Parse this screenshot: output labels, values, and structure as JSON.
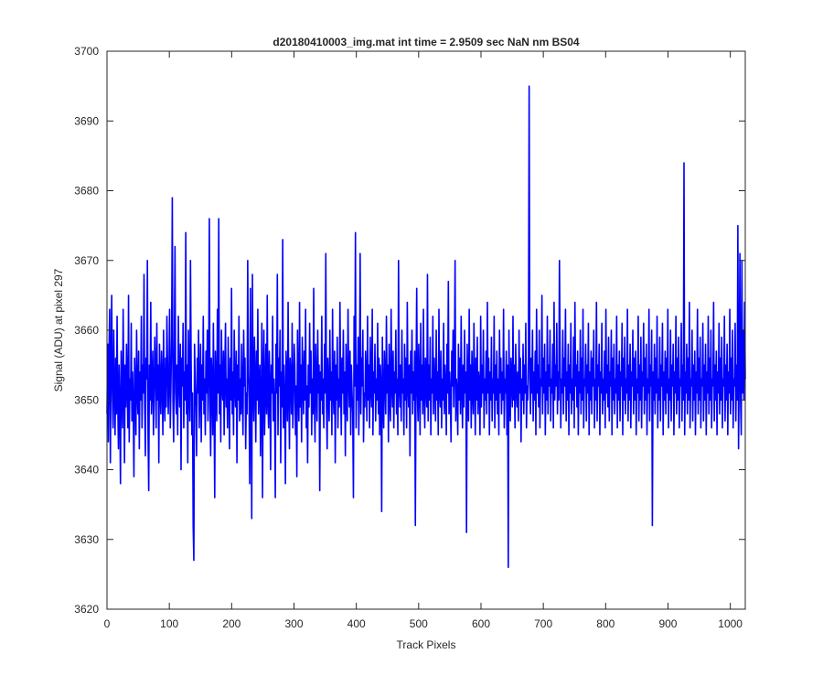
{
  "chart_data": {
    "type": "line",
    "title": "d20180410003_img.mat int time = 2.9509 sec  NaN nm BS04",
    "xlabel": "Track Pixels",
    "ylabel": "Signal (ADU) at pixel 297",
    "xlim": [
      0,
      1024
    ],
    "ylim": [
      3620,
      3700
    ],
    "xticks": [
      0,
      100,
      200,
      300,
      400,
      500,
      600,
      700,
      800,
      900,
      1000
    ],
    "yticks": [
      3620,
      3630,
      3640,
      3650,
      3660,
      3670,
      3680,
      3690,
      3700
    ],
    "grid": false,
    "legend": "none",
    "series_color": "#0000ff",
    "series": [
      {
        "values": [
          3648,
          3658,
          3644,
          3657,
          3663,
          3641,
          3655,
          3665,
          3651,
          3646,
          3660,
          3652,
          3645,
          3656,
          3648,
          3662,
          3650,
          3643,
          3655,
          3649,
          3638,
          3657,
          3651,
          3646,
          3663,
          3652,
          3641,
          3655,
          3649,
          3658,
          3652,
          3646,
          3665,
          3644,
          3653,
          3650,
          3661,
          3647,
          3654,
          3649,
          3639,
          3656,
          3652,
          3645,
          3660,
          3651,
          3648,
          3657,
          3643,
          3654,
          3650,
          3662,
          3646,
          3655,
          3651,
          3668,
          3649,
          3642,
          3656,
          3653,
          3670,
          3645,
          3637,
          3655,
          3650,
          3664,
          3648,
          3652,
          3657,
          3645,
          3651,
          3659,
          3654,
          3646,
          3661,
          3650,
          3655,
          3641,
          3658,
          3652,
          3648,
          3657,
          3653,
          3645,
          3660,
          3651,
          3647,
          3656,
          3649,
          3662,
          3655,
          3648,
          3653,
          3663,
          3646,
          3652,
          3659,
          3679,
          3650,
          3644,
          3657,
          3672,
          3651,
          3648,
          3655,
          3645,
          3662,
          3653,
          3649,
          3658,
          3640,
          3656,
          3652,
          3661,
          3646,
          3654,
          3650,
          3674,
          3648,
          3655,
          3641,
          3660,
          3652,
          3647,
          3670,
          3655,
          3645,
          3651,
          3632,
          3627,
          3658,
          3653,
          3649,
          3642,
          3656,
          3651,
          3660,
          3646,
          3652,
          3658,
          3644,
          3655,
          3650,
          3662,
          3648,
          3653,
          3645,
          3657,
          3651,
          3660,
          3647,
          3654,
          3676,
          3649,
          3642,
          3656,
          3653,
          3645,
          3661,
          3650,
          3636,
          3657,
          3652,
          3647,
          3663,
          3651,
          3676,
          3648,
          3655,
          3644,
          3660,
          3652,
          3650,
          3657,
          3645,
          3654,
          3661,
          3649,
          3653,
          3646,
          3659,
          3652,
          3643,
          3656,
          3650,
          3666,
          3648,
          3654,
          3645,
          3660,
          3652,
          3649,
          3657,
          3641,
          3655,
          3650,
          3662,
          3647,
          3653,
          3648,
          3658,
          3651,
          3645,
          3660,
          3652,
          3656,
          3643,
          3651,
          3648,
          3670,
          3654,
          3650,
          3638,
          3666,
          3650,
          3633,
          3668,
          3652,
          3647,
          3659,
          3653,
          3644,
          3657,
          3650,
          3663,
          3648,
          3652,
          3655,
          3642,
          3649,
          3661,
          3636,
          3653,
          3660,
          3645,
          3651,
          3658,
          3648,
          3665,
          3650,
          3646,
          3657,
          3652,
          3640,
          3655,
          3651,
          3662,
          3647,
          3653,
          3649,
          3636,
          3658,
          3651,
          3668,
          3645,
          3656,
          3652,
          3660,
          3641,
          3654,
          3649,
          3673,
          3646,
          3655,
          3650,
          3638,
          3657,
          3652,
          3647,
          3664,
          3651,
          3643,
          3656,
          3653,
          3648,
          3661,
          3646,
          3650,
          3658,
          3655,
          3645,
          3652,
          3639,
          3660,
          3651,
          3647,
          3664,
          3649,
          3655,
          3644,
          3659,
          3653,
          3648,
          3657,
          3650,
          3663,
          3646,
          3652,
          3641,
          3655,
          3649,
          3661,
          3651,
          3657,
          3645,
          3653,
          3648,
          3666,
          3650,
          3644,
          3658,
          3652,
          3647,
          3660,
          3651,
          3655,
          3637,
          3654,
          3650,
          3662,
          3648,
          3653,
          3646,
          3658,
          3651,
          3671,
          3649,
          3643,
          3656,
          3652,
          3647,
          3660,
          3650,
          3654,
          3645,
          3663,
          3651,
          3648,
          3657,
          3641,
          3655,
          3650,
          3659,
          3646,
          3653,
          3649,
          3664,
          3652,
          3645,
          3656,
          3651,
          3660,
          3648,
          3654,
          3642,
          3658,
          3650,
          3647,
          3663,
          3653,
          3649,
          3657,
          3645,
          3655,
          3651,
          3648,
          3636,
          3662,
          3652,
          3674,
          3646,
          3655,
          3650,
          3659,
          3645,
          3653,
          3671,
          3648,
          3656,
          3652,
          3660,
          3644,
          3651,
          3649,
          3657,
          3653,
          3647,
          3662,
          3650,
          3655,
          3646,
          3659,
          3652,
          3649,
          3663,
          3645,
          3654,
          3651,
          3658,
          3647,
          3653,
          3650,
          3661,
          3648,
          3656,
          3645,
          3655,
          3652,
          3634,
          3659,
          3650,
          3646,
          3657,
          3653,
          3648,
          3662,
          3651,
          3655,
          3644,
          3658,
          3650,
          3647,
          3663,
          3652,
          3649,
          3657,
          3646,
          3654,
          3651,
          3660,
          3648,
          3653,
          3645,
          3670,
          3652,
          3649,
          3655,
          3647,
          3660,
          3651,
          3653,
          3645,
          3658,
          3650,
          3656,
          3646,
          3664,
          3652,
          3649,
          3655,
          3642,
          3657,
          3651,
          3660,
          3648,
          3654,
          3650,
          3657,
          3632,
          3653,
          3666,
          3651,
          3647,
          3658,
          3652,
          3645,
          3661,
          3650,
          3655,
          3648,
          3663,
          3651,
          3646,
          3656,
          3652,
          3649,
          3668,
          3647,
          3655,
          3650,
          3659,
          3645,
          3653,
          3651,
          3662,
          3648,
          3656,
          3652,
          3647,
          3660,
          3650,
          3654,
          3645,
          3663,
          3651,
          3649,
          3657,
          3646,
          3653,
          3650,
          3661,
          3648,
          3655,
          3652,
          3645,
          3658,
          3651,
          3667,
          3648,
          3654,
          3650,
          3644,
          3657,
          3652,
          3660,
          3649,
          3655,
          3670,
          3647,
          3653,
          3651,
          3645,
          3658,
          3650,
          3656,
          3648,
          3662,
          3652,
          3646,
          3655,
          3649,
          3660,
          3651,
          3654,
          3631,
          3658,
          3652,
          3647,
          3663,
          3650,
          3655,
          3646,
          3657,
          3651,
          3648,
          3661,
          3653,
          3645,
          3656,
          3650,
          3659,
          3648,
          3654,
          3652,
          3645,
          3662,
          3649,
          3655,
          3651,
          3660,
          3646,
          3653,
          3650,
          3657,
          3648,
          3664,
          3651,
          3656,
          3645,
          3654,
          3650,
          3659,
          3647,
          3653,
          3651,
          3662,
          3646,
          3655,
          3650,
          3657,
          3648,
          3653,
          3645,
          3660,
          3651,
          3656,
          3648,
          3654,
          3650,
          3663,
          3646,
          3653,
          3651,
          3657,
          3645,
          3655,
          3626,
          3660,
          3651,
          3647,
          3656,
          3653,
          3649,
          3662,
          3650,
          3655,
          3646,
          3658,
          3652,
          3649,
          3654,
          3647,
          3660,
          3651,
          3656,
          3644,
          3653,
          3650,
          3658,
          3648,
          3655,
          3651,
          3661,
          3646,
          3652,
          3650,
          3657,
          3695,
          3653,
          3648,
          3656,
          3651,
          3660,
          3647,
          3654,
          3650,
          3657,
          3645,
          3663,
          3651,
          3655,
          3649,
          3660,
          3646,
          3653,
          3652,
          3665,
          3648,
          3656,
          3651,
          3658,
          3645,
          3654,
          3650,
          3662,
          3648,
          3655,
          3652,
          3660,
          3647,
          3653,
          3651,
          3658,
          3646,
          3664,
          3650,
          3655,
          3652,
          3661,
          3648,
          3654,
          3650,
          3670,
          3657,
          3646,
          3653,
          3651,
          3660,
          3648,
          3656,
          3652,
          3663,
          3647,
          3654,
          3650,
          3658,
          3645,
          3655,
          3651,
          3661,
          3648,
          3653,
          3650,
          3659,
          3646,
          3664,
          3652,
          3655,
          3649,
          3657,
          3645,
          3654,
          3651,
          3660,
          3648,
          3656,
          3650,
          3663,
          3646,
          3653,
          3652,
          3658,
          3647,
          3655,
          3651,
          3661,
          3645,
          3654,
          3650,
          3657,
          3648,
          3656,
          3652,
          3660,
          3646,
          3653,
          3650,
          3664,
          3647,
          3655,
          3652,
          3658,
          3645,
          3654,
          3651,
          3661,
          3648,
          3653,
          3650,
          3657,
          3646,
          3663,
          3651,
          3655,
          3649,
          3659,
          3647,
          3654,
          3652,
          3660,
          3645,
          3656,
          3650,
          3658,
          3648,
          3653,
          3651,
          3662,
          3646,
          3655,
          3650,
          3657,
          3647,
          3654,
          3652,
          3661,
          3645,
          3656,
          3650,
          3659,
          3648,
          3653,
          3651,
          3663,
          3647,
          3655,
          3650,
          3658,
          3646,
          3654,
          3652,
          3660,
          3648,
          3656,
          3650,
          3657,
          3645,
          3653,
          3651,
          3662,
          3647,
          3655,
          3650,
          3659,
          3646,
          3654,
          3652,
          3661,
          3648,
          3656,
          3650,
          3658,
          3645,
          3653,
          3651,
          3663,
          3647,
          3655,
          3652,
          3660,
          3632,
          3654,
          3650,
          3658,
          3648,
          3656,
          3651,
          3662,
          3646,
          3653,
          3650,
          3659,
          3647,
          3655,
          3652,
          3661,
          3645,
          3654,
          3650,
          3657,
          3648,
          3656,
          3651,
          3663,
          3646,
          3653,
          3650,
          3660,
          3647,
          3655,
          3652,
          3658,
          3645,
          3654,
          3651,
          3662,
          3648,
          3656,
          3650,
          3659,
          3646,
          3653,
          3652,
          3661,
          3647,
          3655,
          3650,
          3684,
          3645,
          3654,
          3651,
          3658,
          3648,
          3656,
          3650,
          3664,
          3646,
          3653,
          3652,
          3660,
          3647,
          3655,
          3650,
          3657,
          3645,
          3654,
          3651,
          3663,
          3648,
          3656,
          3650,
          3659,
          3646,
          3653,
          3652,
          3661,
          3647,
          3655,
          3650,
          3658,
          3645,
          3654,
          3651,
          3662,
          3648,
          3656,
          3650,
          3660,
          3646,
          3653,
          3652,
          3664,
          3647,
          3655,
          3650,
          3657,
          3645,
          3654,
          3651,
          3661,
          3648,
          3656,
          3650,
          3659,
          3646,
          3653,
          3652,
          3662,
          3647,
          3655,
          3650,
          3658,
          3645,
          3654,
          3651,
          3663,
          3648,
          3656,
          3650,
          3660,
          3646,
          3653,
          3652,
          3661,
          3647,
          3655,
          3650,
          3675,
          3643,
          3654,
          3671,
          3650,
          3645,
          3670,
          3651,
          3660,
          3650,
          3664,
          3653
        ]
      }
    ]
  }
}
